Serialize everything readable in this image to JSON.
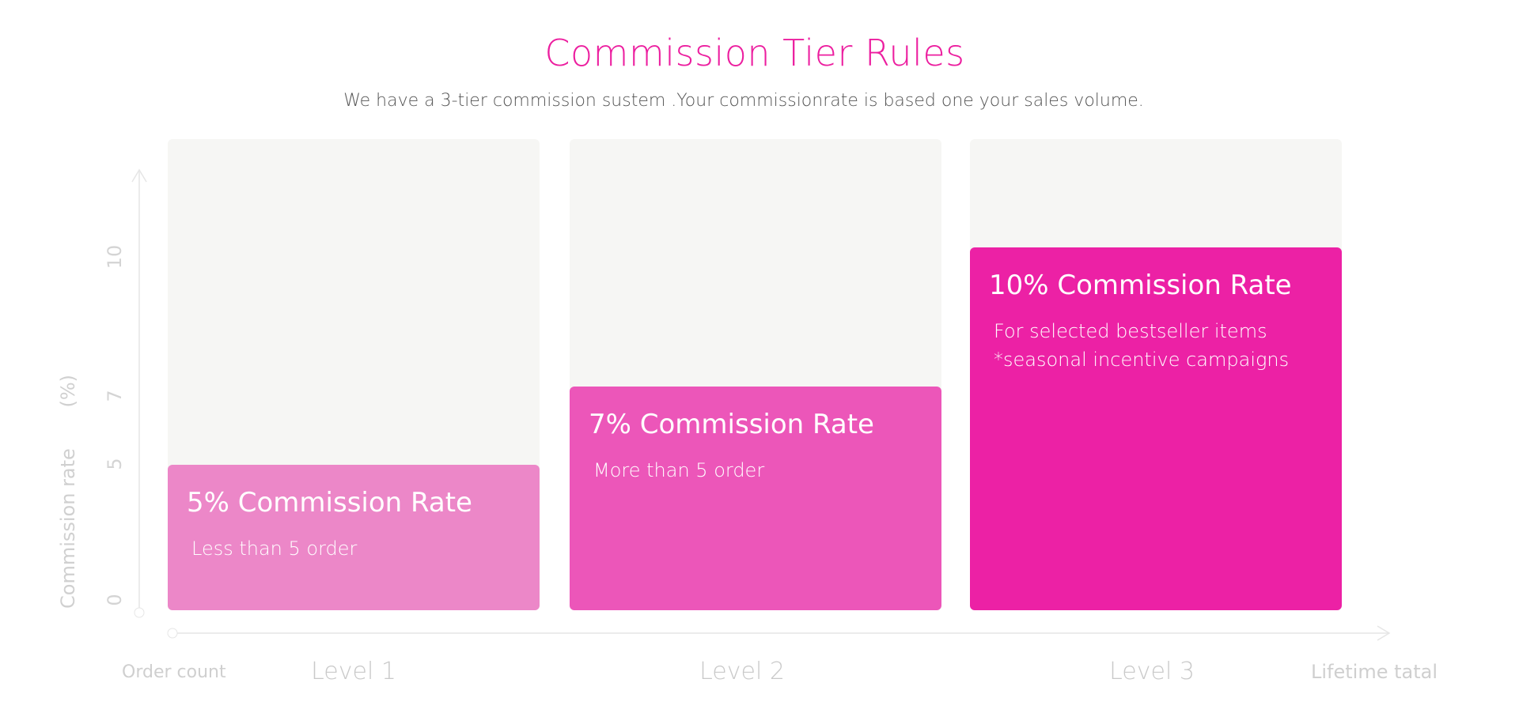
{
  "chart_data": {
    "type": "bar",
    "title": "Commission Tier Rules",
    "subtitle": "We have a 3-tier commission sustem .Your commissionrate is based one your sales volume.",
    "categories": [
      "Level 1",
      "Level 2",
      "Level 3"
    ],
    "values": [
      5,
      7,
      10
    ],
    "ylabel": "Commission rate",
    "ylabel_unit": "(%)",
    "xlabel_start": "Order count",
    "xlabel_end": "Lifetime tatal",
    "yticks": [
      "0",
      "5",
      "7",
      "10"
    ],
    "grid": false,
    "bars": [
      {
        "heading": "5% Commission Rate",
        "lines": [
          "Less than 5 order"
        ],
        "color": "#ec87c8"
      },
      {
        "heading": "7% Commission Rate",
        "lines": [
          "More than 5 order"
        ],
        "color": "#ec56b9"
      },
      {
        "heading": "10% Commission Rate",
        "lines": [
          "For selected bestseller items",
          "*seasonal incentive campaigns"
        ],
        "color": "#ec21a5"
      }
    ],
    "colors": {
      "title": "#ec1e9f",
      "column_background": "#f6f6f4",
      "axis": "#e6e6e6"
    }
  }
}
